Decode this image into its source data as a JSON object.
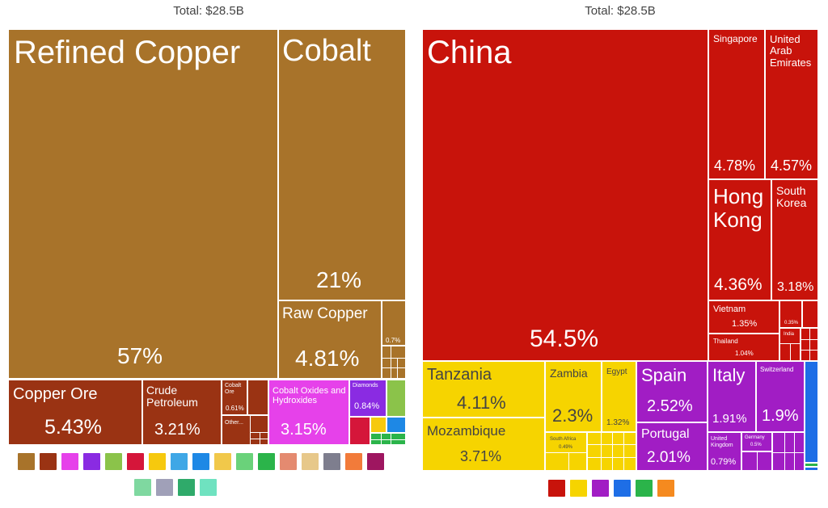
{
  "chart_data": [
    {
      "type": "treemap",
      "title": "Total: $28.5B",
      "items": [
        {
          "label": "Refined Copper",
          "value": "57%",
          "color": "#a8732a"
        },
        {
          "label": "Cobalt",
          "value": "21%",
          "color": "#a8732a"
        },
        {
          "label": "Raw Copper",
          "value": "4.81%",
          "color": "#a8732a"
        },
        {
          "label": "",
          "value": "0.7%",
          "color": "#a8732a"
        },
        {
          "label": "Copper Ore",
          "value": "5.43%",
          "color": "#9a3313"
        },
        {
          "label": "Crude Petroleum",
          "value": "3.21%",
          "color": "#9a3313"
        },
        {
          "label": "Cobalt Ore",
          "value": "0.61%",
          "color": "#9a3313"
        },
        {
          "label": "Other...",
          "value": "",
          "color": "#9a3313"
        },
        {
          "label": "Cobalt Oxides and Hydroxides",
          "value": "3.15%",
          "color": "#e641ea"
        },
        {
          "label": "Diamonds",
          "value": "0.84%",
          "color": "#8a2be2"
        }
      ],
      "legend_icons": [
        {
          "name": "metals-icon",
          "color": "#a8732a"
        },
        {
          "name": "mineral-products-icon",
          "color": "#9a3313"
        },
        {
          "name": "chemical-products-icon",
          "color": "#e641ea"
        },
        {
          "name": "precious-metals-icon",
          "color": "#8a2be2"
        },
        {
          "name": "vegetable-products-icon",
          "color": "#8bc34a"
        },
        {
          "name": "transportation-icon",
          "color": "#d5163a"
        },
        {
          "name": "foodstuffs-icon",
          "color": "#f6c90e"
        },
        {
          "name": "textiles-icon",
          "color": "#3fa7e6"
        },
        {
          "name": "machines-icon",
          "color": "#1e88e5"
        },
        {
          "name": "plastics-icon",
          "color": "#f1c84a"
        },
        {
          "name": "paper-goods-icon",
          "color": "#6ad27a"
        },
        {
          "name": "textile-products-icon",
          "color": "#2bb44a"
        },
        {
          "name": "animal-products-icon",
          "color": "#e48a70"
        },
        {
          "name": "wood-products-icon",
          "color": "#e7c88a"
        },
        {
          "name": "instruments-icon",
          "color": "#7e7e8e"
        },
        {
          "name": "stone-glass-icon",
          "color": "#f27b3a"
        },
        {
          "name": "weapons-icon",
          "color": "#9e1660"
        },
        {
          "name": "footwear-icon",
          "color": "#7fd8a0"
        },
        {
          "name": "miscellaneous-icon",
          "color": "#a0a0b8"
        },
        {
          "name": "animal-hides-icon",
          "color": "#2faa6a"
        },
        {
          "name": "leather-icon",
          "color": "#6fe2c0"
        }
      ]
    },
    {
      "type": "treemap",
      "title": "Total: $28.5B",
      "items": [
        {
          "label": "China",
          "value": "54.5%",
          "color": "#c8130b"
        },
        {
          "label": "Singapore",
          "value": "4.78%",
          "color": "#c8130b"
        },
        {
          "label": "United Arab Emirates",
          "value": "4.57%",
          "color": "#c8130b"
        },
        {
          "label": "Hong Kong",
          "value": "4.36%",
          "color": "#c8130b"
        },
        {
          "label": "South Korea",
          "value": "3.18%",
          "color": "#c8130b"
        },
        {
          "label": "Vietnam",
          "value": "1.35%",
          "color": "#c8130b"
        },
        {
          "label": "Thailand",
          "value": "1.04%",
          "color": "#c8130b"
        },
        {
          "label": "",
          "value": "0.35%",
          "color": "#c8130b"
        },
        {
          "label": "India",
          "value": "",
          "color": "#c8130b"
        },
        {
          "label": "Tanzania",
          "value": "4.11%",
          "color": "#f6d400"
        },
        {
          "label": "Mozambique",
          "value": "3.71%",
          "color": "#f6d400"
        },
        {
          "label": "Zambia",
          "value": "2.3%",
          "color": "#f6d400"
        },
        {
          "label": "Egypt",
          "value": "1.32%",
          "color": "#f6d400"
        },
        {
          "label": "South Africa",
          "value": "0.49%",
          "color": "#f6d400"
        },
        {
          "label": "Spain",
          "value": "2.52%",
          "color": "#a11dc4"
        },
        {
          "label": "Portugal",
          "value": "2.01%",
          "color": "#a11dc4"
        },
        {
          "label": "Italy",
          "value": "1.91%",
          "color": "#a11dc4"
        },
        {
          "label": "Switzerland",
          "value": "1.9%",
          "color": "#a11dc4"
        },
        {
          "label": "United Kingdom",
          "value": "0.79%",
          "color": "#a11dc4"
        },
        {
          "label": "Germany",
          "value": "0.5%",
          "color": "#a11dc4"
        }
      ],
      "legend_icons": [
        {
          "name": "asia-icon",
          "color": "#c8130b"
        },
        {
          "name": "africa-icon",
          "color": "#f6d400"
        },
        {
          "name": "europe-icon",
          "color": "#a11dc4"
        },
        {
          "name": "north-america-icon",
          "color": "#1e6ee6"
        },
        {
          "name": "south-america-icon",
          "color": "#2bb44a"
        },
        {
          "name": "oceania-icon",
          "color": "#f58a1f"
        }
      ]
    }
  ]
}
